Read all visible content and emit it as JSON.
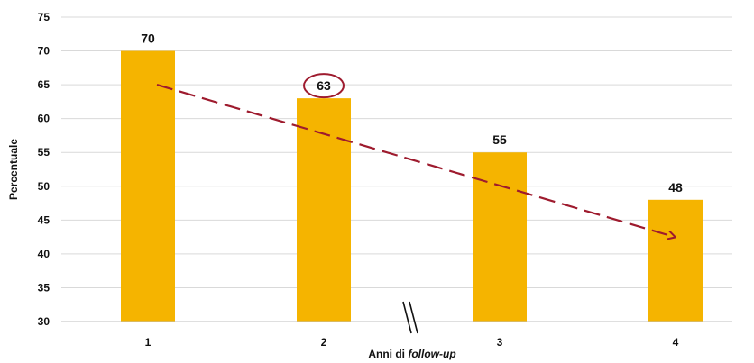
{
  "chart_data": {
    "type": "bar",
    "categories": [
      "1",
      "2",
      "3",
      "4"
    ],
    "values": [
      70,
      63,
      55,
      48
    ],
    "data_labels": [
      "70",
      "63",
      "55",
      "48"
    ],
    "highlighted_label_index": 1,
    "title": "",
    "xlabel_prefix": "Anni di ",
    "xlabel_italic": "follow-up",
    "ylabel": "Percentuale",
    "ylim": [
      30,
      75
    ],
    "yticks": [
      "30",
      "35",
      "40",
      "45",
      "50",
      "55",
      "60",
      "65",
      "70",
      "75"
    ],
    "grid": true,
    "legend": "none",
    "axis_break": "between 2 and 3",
    "trend_arrow": {
      "from_value": 65,
      "to_value": 42.5,
      "style": "dashed"
    },
    "colors": {
      "bar": "#F5B400",
      "trend": "#9E1B2E",
      "highlight_ring": "#9E1B2E",
      "grid": "#D9D9D9"
    }
  }
}
